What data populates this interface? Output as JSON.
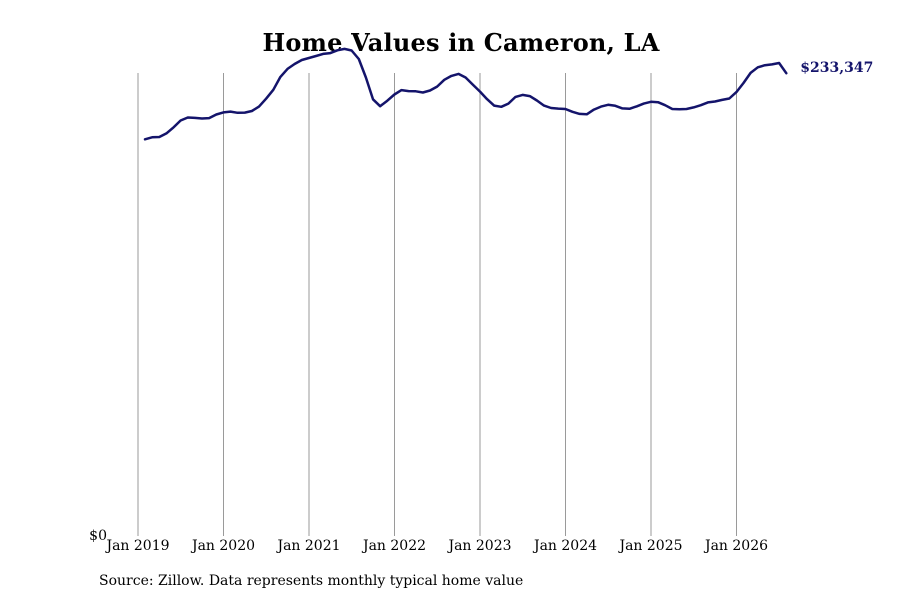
{
  "chart_data": {
    "type": "line",
    "title": "Home Values in Cameron, LA",
    "xlabel": "",
    "ylabel": "",
    "x_ticks": [
      "Jan 2019",
      "Jan 2020",
      "Jan 2021",
      "Jan 2022",
      "Jan 2023",
      "Jan 2024",
      "Jan 2025",
      "Jan 2026"
    ],
    "y_ticks": [
      "$0"
    ],
    "ylim": [
      0,
      240000
    ],
    "grid": "vertical",
    "end_label": "$233,347",
    "line_color": "#14146b",
    "series": [
      {
        "x": [
          "2019-01",
          "2019-02",
          "2019-03",
          "2019-04",
          "2019-05",
          "2019-06",
          "2019-07",
          "2019-08",
          "2019-09",
          "2019-10",
          "2019-11",
          "2019-12",
          "2020-01",
          "2020-02",
          "2020-03",
          "2020-04",
          "2020-05",
          "2020-06",
          "2020-07",
          "2020-08",
          "2020-09",
          "2020-10",
          "2020-11",
          "2020-12",
          "2021-01",
          "2021-02",
          "2021-03",
          "2021-04",
          "2021-05",
          "2021-06",
          "2021-07",
          "2021-08",
          "2021-09",
          "2021-10",
          "2021-11",
          "2021-12",
          "2022-01",
          "2022-02",
          "2022-03",
          "2022-04",
          "2022-05",
          "2022-06",
          "2022-07",
          "2022-08",
          "2022-09",
          "2022-10",
          "2022-11",
          "2022-12",
          "2023-01",
          "2023-02",
          "2023-03",
          "2023-04",
          "2023-05",
          "2023-06",
          "2023-07",
          "2023-08",
          "2023-09",
          "2023-10",
          "2023-11",
          "2023-12",
          "2024-01",
          "2024-02",
          "2024-03",
          "2024-04",
          "2024-05",
          "2024-06",
          "2024-07",
          "2024-08",
          "2024-09",
          "2024-10",
          "2024-11",
          "2024-12",
          "2025-01",
          "2025-02",
          "2025-03",
          "2025-04",
          "2025-05",
          "2025-06",
          "2025-07",
          "2025-08",
          "2025-09",
          "2025-10",
          "2025-11",
          "2025-12",
          "2026-01",
          "2026-02",
          "2026-03",
          "2026-04",
          "2026-05",
          "2026-06",
          "2026-07"
        ],
        "values": [
          200000,
          201000,
          201200,
          203000,
          206000,
          209500,
          211000,
          210800,
          210500,
          210700,
          212500,
          213600,
          214000,
          213400,
          213500,
          214300,
          216500,
          220500,
          225000,
          231500,
          235500,
          238000,
          240000,
          241000,
          242000,
          243100,
          243500,
          244900,
          245600,
          244800,
          240500,
          231200,
          220200,
          216700,
          219500,
          222600,
          224800,
          224300,
          224200,
          223600,
          224600,
          226600,
          230000,
          232000,
          233000,
          231200,
          227600,
          224100,
          220300,
          217000,
          216400,
          218000,
          221400,
          222400,
          221800,
          219600,
          217000,
          215800,
          215500,
          215300,
          213900,
          212800,
          212600,
          215000,
          216500,
          217400,
          216900,
          215600,
          215400,
          216600,
          218000,
          218900,
          218700,
          217200,
          215300,
          215200,
          215300,
          216100,
          217200,
          218600,
          219100,
          219900,
          220600,
          223800,
          228400,
          233500,
          236300,
          237400,
          237800,
          238500,
          233347
        ]
      }
    ]
  }
}
